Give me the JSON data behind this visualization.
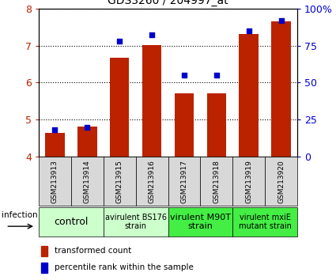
{
  "title": "GDS3260 / 204997_at",
  "samples": [
    "GSM213913",
    "GSM213914",
    "GSM213915",
    "GSM213916",
    "GSM213917",
    "GSM213918",
    "GSM213919",
    "GSM213920"
  ],
  "bar_values": [
    4.65,
    4.82,
    6.68,
    7.02,
    5.72,
    5.72,
    7.32,
    7.65
  ],
  "dot_percentiles": [
    18,
    20,
    78,
    82,
    55,
    55,
    85,
    92
  ],
  "bar_color": "#bb2200",
  "dot_color": "#0000cc",
  "ylim_left": [
    4,
    8
  ],
  "ylim_right": [
    0,
    100
  ],
  "yticks_left": [
    4,
    5,
    6,
    7,
    8
  ],
  "yticks_right": [
    0,
    25,
    50,
    75,
    100
  ],
  "ytick_labels_right": [
    "0",
    "25",
    "50",
    "75",
    "100%"
  ],
  "groups": [
    {
      "label": "control",
      "start": 0,
      "end": 2,
      "color": "#ccffcc",
      "fontsize": 9
    },
    {
      "label": "avirulent BS176\nstrain",
      "start": 2,
      "end": 4,
      "color": "#ccffcc",
      "fontsize": 7
    },
    {
      "label": "virulent M90T\nstrain",
      "start": 4,
      "end": 6,
      "color": "#44ee44",
      "fontsize": 8
    },
    {
      "label": "virulent mxiE\nmutant strain",
      "start": 6,
      "end": 8,
      "color": "#44ee44",
      "fontsize": 7
    }
  ],
  "infection_label": "infection",
  "legend_bar_label": "transformed count",
  "legend_dot_label": "percentile rank within the sample",
  "bar_width": 0.6
}
